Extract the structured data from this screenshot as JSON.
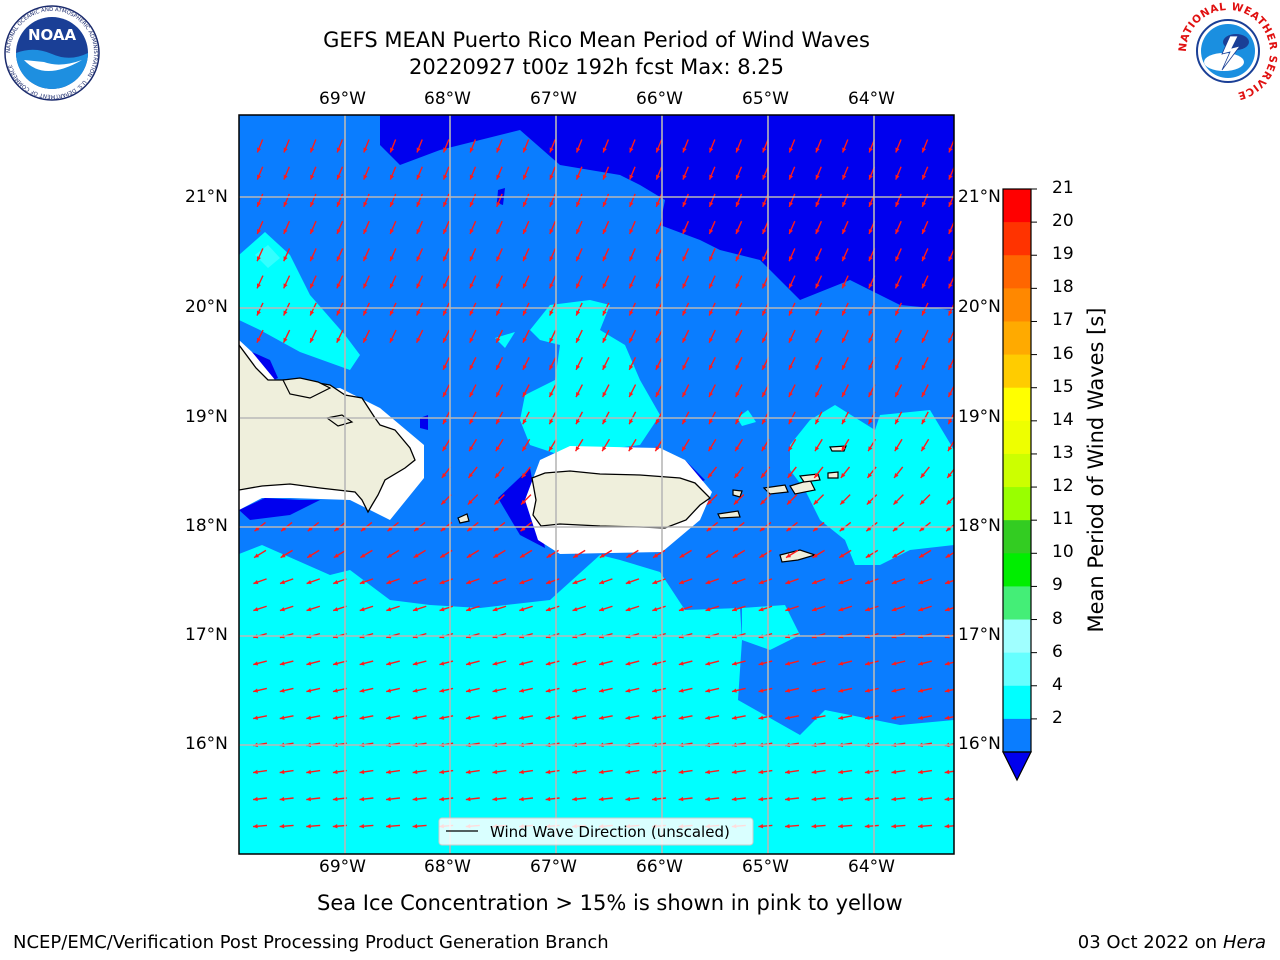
{
  "title": {
    "line1": "GEFS MEAN Puerto Rico Mean Period of Wind Waves",
    "line2": "20220927 t00z 192h fcst   Max: 8.25"
  },
  "map": {
    "lon_labels": [
      "69°W",
      "68°W",
      "67°W",
      "66°W",
      "65°W",
      "64°W"
    ],
    "lat_labels": [
      "21°N",
      "20°N",
      "19°N",
      "18°N",
      "17°N",
      "16°N"
    ],
    "legend_text": "Wind Wave Direction (unscaled)",
    "colors": {
      "band_2_4": "#0a7dff",
      "band_below_2": "#0000ee",
      "band_4_6": "#00ffff",
      "band_6_8": "#33ffff",
      "land": "#efefdc",
      "arrow": "#ff1a1a",
      "grid": "#b8b8b8"
    }
  },
  "colorbar": {
    "label": "Mean Period of Wind Waves [s]",
    "ticks": [
      "21",
      "20",
      "19",
      "18",
      "17",
      "16",
      "15",
      "14",
      "13",
      "12",
      "11",
      "10",
      "9",
      "8",
      "6",
      "4",
      "2"
    ],
    "colors": [
      "#ff0000",
      "#ff3300",
      "#ff6600",
      "#ff8800",
      "#ffaa00",
      "#ffcc00",
      "#ffff00",
      "#eeff00",
      "#ccff00",
      "#99ff00",
      "#33cc22",
      "#00ee00",
      "#44ee77",
      "#a0ffff",
      "#66ffff",
      "#00ffff",
      "#0a7dff"
    ],
    "extend_color": "#0000ee"
  },
  "note": "Sea Ice Concentration > 15% is shown in pink to yellow",
  "footer": {
    "left": "NCEP/EMC/Verification Post Processing Product Generation Branch",
    "date": "03 Oct 2022 on",
    "host": "Hera"
  },
  "logos": {
    "noaa_text": "NOAA",
    "noaa_ring": "NATIONAL OCEANIC AND ATMOSPHERIC ADMINISTRATION · U.S. DEPARTMENT OF COMMERCE",
    "nws_ring": "NATIONAL WEATHER SERVICE"
  }
}
